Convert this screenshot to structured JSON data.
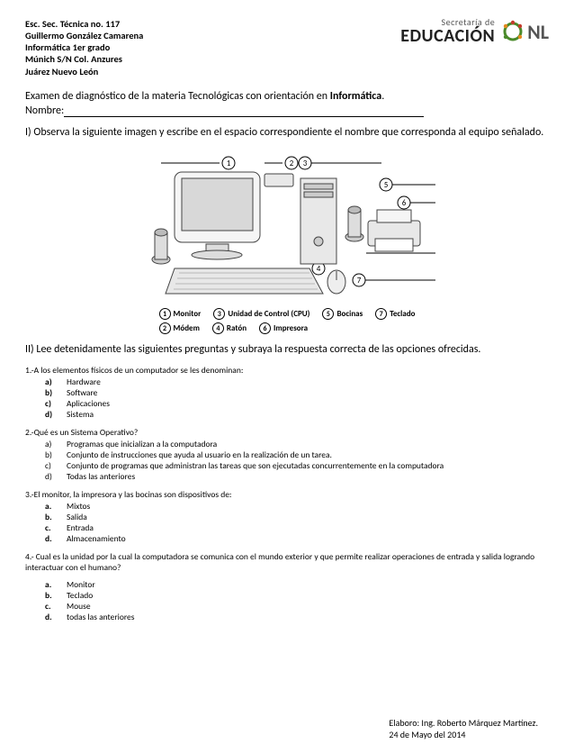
{
  "header": {
    "school": "Esc. Sec. Técnica no. 117",
    "teacher": "Guillermo González Camarena",
    "subject": "Informática 1er grado",
    "address": "Múnich S/N Col. Anzures",
    "city": "Juárez Nuevo León",
    "logo_small": "Secretaría de",
    "logo_big": "EDUCACIÓN",
    "nl": "NL"
  },
  "title": {
    "prefix": "Examen de diagnóstico de la materia Tecnológicas con  orientación en  ",
    "bold": "Informática",
    "suffix": "."
  },
  "nombre_label": "Nombre:",
  "section1": "I) Observa la siguiente imagen y escribe en el espacio correspondiente el nombre que corresponda al equipo señalado.",
  "legend": [
    {
      "n": "1",
      "t": "Monitor"
    },
    {
      "n": "2",
      "t": "Módem"
    },
    {
      "n": "3",
      "t": "Unidad de Control (CPU)"
    },
    {
      "n": "4",
      "t": "Ratón"
    },
    {
      "n": "5",
      "t": "Bocinas"
    },
    {
      "n": "6",
      "t": "Impresora"
    },
    {
      "n": "7",
      "t": "Teclado"
    }
  ],
  "section2": "II) Lee detenidamente las siguientes preguntas y subraya la respuesta correcta de las opciones ofrecidas.",
  "questions": [
    {
      "q": "1.-A los elementos físicos de un computador se les denominan:",
      "bold": true,
      "opts": [
        "Hardware",
        "Software",
        "Aplicaciones",
        "Sistema"
      ]
    },
    {
      "q": "2.-Qué es un Sistema Operativo?",
      "bold": false,
      "opts": [
        "Programas que inicializan a la computadora",
        "Conjunto de instrucciones que ayuda al usuario en la realización de un tarea.",
        "Conjunto de programas que administran las tareas que son ejecutadas concurrentemente en la computadora",
        "Todas las anteriores"
      ]
    },
    {
      "q": "3.-El monitor, la impresora y las bocinas son dispositivos de:",
      "bold": true,
      "opts": [
        "Mixtos",
        "Salida",
        "Entrada",
        "Almacenamiento"
      ]
    },
    {
      "q": "4.- Cual es la unidad por la cual la computadora se comunica con el mundo exterior y que permite realizar operaciones de entrada y salida logrando interactuar con el humano?",
      "bold": true,
      "spaced": true,
      "opts": [
        "Monitor",
        "Teclado",
        "Mouse",
        "todas las anteriores"
      ]
    }
  ],
  "opt_letters": [
    "a)",
    "b)",
    "c)",
    "d)"
  ],
  "opt_letters_dot": [
    "a.",
    "b.",
    "c.",
    "d."
  ],
  "footer": {
    "line1": "Elaboro: Ing. Roberto Márquez Martínez.",
    "line2": "24 de Mayo del 2014"
  },
  "colors": {
    "logo_green": "#4a8a2a",
    "logo_orange": "#e68a1f",
    "logo_red": "#c43b2c",
    "text": "#000000"
  }
}
